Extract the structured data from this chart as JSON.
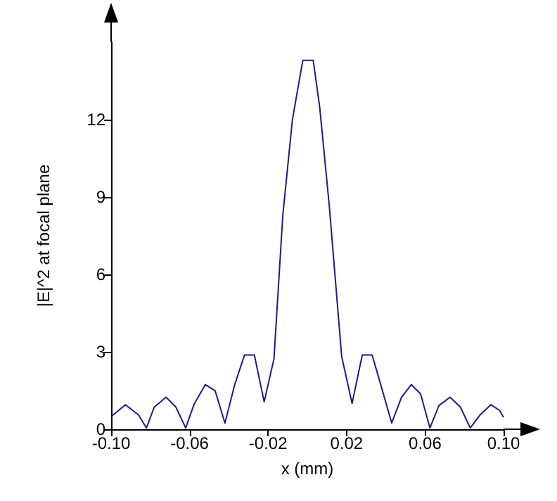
{
  "chart_data": {
    "type": "line",
    "xlabel": "x (mm)",
    "ylabel": "|E|^2 at focal plane",
    "x": [
      -0.1,
      -0.0927,
      -0.086,
      -0.082,
      -0.078,
      -0.072,
      -0.067,
      -0.062,
      -0.0577,
      -0.052,
      -0.047,
      -0.042,
      -0.037,
      -0.032,
      -0.027,
      -0.022,
      -0.017,
      -0.0125,
      -0.0076,
      -0.0023,
      0.003,
      0.0063,
      0.0112,
      0.0175,
      0.0228,
      0.028,
      0.033,
      0.0383,
      0.043,
      0.048,
      0.053,
      0.0577,
      0.0625,
      0.067,
      0.0727,
      0.078,
      0.083,
      0.088,
      0.0935,
      0.098,
      0.1
    ],
    "series": [
      {
        "color": "#1c1c8a",
        "values": [
          0.49,
          0.95,
          0.55,
          0.05,
          0.86,
          1.24,
          0.86,
          0.05,
          0.97,
          1.73,
          1.49,
          0.24,
          1.73,
          2.88,
          2.88,
          1.06,
          2.73,
          8.29,
          12.0,
          14.3,
          14.3,
          12.48,
          8.65,
          2.82,
          1.0,
          2.88,
          2.88,
          1.49,
          0.24,
          1.24,
          1.73,
          1.37,
          0.05,
          0.91,
          1.24,
          0.86,
          0.05,
          0.55,
          0.95,
          0.73,
          0.46
        ]
      }
    ],
    "xlim": [
      -0.1,
      0.1
    ],
    "xticks": [
      {
        "value": -0.1,
        "label": "-0.10"
      },
      -0.06,
      -0.02,
      0.02,
      0.06,
      {
        "value": 0.1,
        "label": "0.10"
      }
    ],
    "ylim": [
      0,
      15
    ],
    "yticks": [
      0,
      3,
      6,
      9,
      12
    ],
    "grid": false,
    "marker": "none",
    "line_style": "solid"
  }
}
